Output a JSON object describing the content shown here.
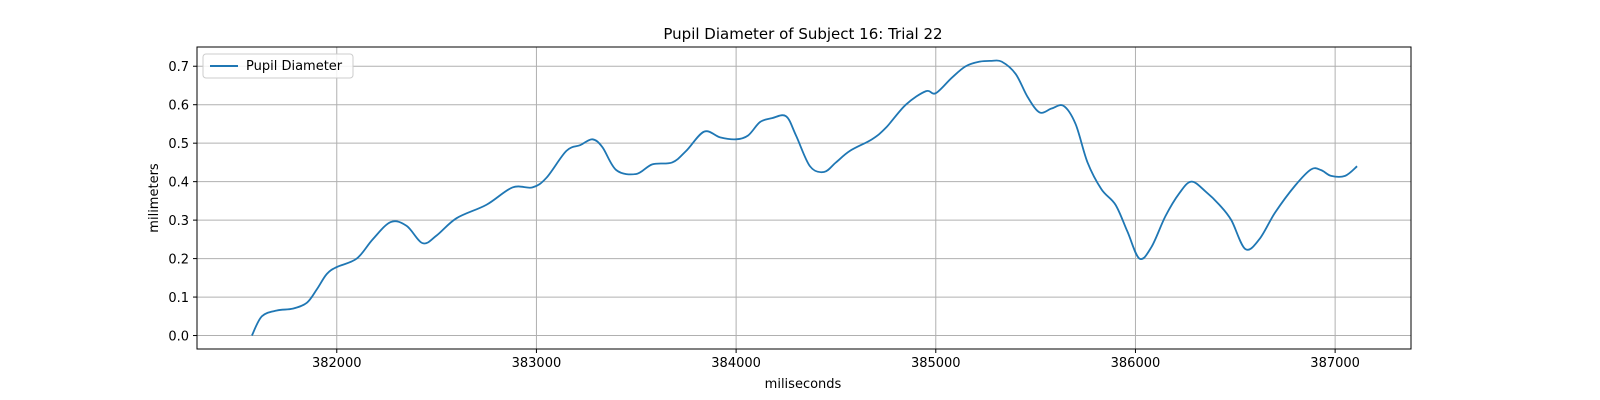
{
  "chart_data": {
    "type": "line",
    "title": "Pupil Diameter of Subject 16: Trial 22",
    "xlabel": "miliseconds",
    "ylabel": "milimeters",
    "xlim": [
      381300,
      387380
    ],
    "ylim": [
      -0.035,
      0.75
    ],
    "xticks": [
      382000,
      383000,
      384000,
      385000,
      386000,
      387000
    ],
    "yticks": [
      0.0,
      0.1,
      0.2,
      0.3,
      0.4,
      0.5,
      0.6,
      0.7
    ],
    "ytick_labels": [
      "0.0",
      "0.1",
      "0.2",
      "0.3",
      "0.4",
      "0.5",
      "0.6",
      "0.7"
    ],
    "grid": true,
    "legend_position": "top-left",
    "series": [
      {
        "name": "Pupil Diameter",
        "color": "#1f77b4",
        "x": [
          381575,
          381625,
          381700,
          381780,
          381850,
          381900,
          381950,
          382000,
          382100,
          382180,
          382270,
          382350,
          382430,
          382500,
          382600,
          382750,
          382880,
          382980,
          383050,
          383150,
          383220,
          383280,
          383330,
          383400,
          383500,
          383580,
          383680,
          383750,
          383840,
          383920,
          384000,
          384060,
          384120,
          384180,
          384250,
          384300,
          384370,
          384440,
          384500,
          384570,
          384680,
          384750,
          384850,
          384950,
          385000,
          385080,
          385150,
          385220,
          385280,
          385330,
          385400,
          385460,
          385520,
          385580,
          385640,
          385700,
          385760,
          385830,
          385900,
          385960,
          386020,
          386080,
          386150,
          386220,
          386280,
          386350,
          386420,
          386480,
          386550,
          386620,
          386700,
          386800,
          386880,
          386930,
          386980,
          387050,
          387110
        ],
        "y": [
          0.0,
          0.05,
          0.065,
          0.07,
          0.085,
          0.12,
          0.16,
          0.178,
          0.2,
          0.25,
          0.295,
          0.285,
          0.24,
          0.26,
          0.305,
          0.34,
          0.385,
          0.385,
          0.41,
          0.48,
          0.495,
          0.51,
          0.49,
          0.43,
          0.42,
          0.445,
          0.45,
          0.48,
          0.53,
          0.515,
          0.51,
          0.52,
          0.555,
          0.565,
          0.57,
          0.52,
          0.44,
          0.425,
          0.45,
          0.48,
          0.51,
          0.54,
          0.6,
          0.635,
          0.63,
          0.67,
          0.7,
          0.712,
          0.714,
          0.712,
          0.68,
          0.62,
          0.58,
          0.59,
          0.597,
          0.55,
          0.45,
          0.38,
          0.34,
          0.27,
          0.2,
          0.23,
          0.31,
          0.37,
          0.4,
          0.375,
          0.34,
          0.3,
          0.225,
          0.25,
          0.32,
          0.39,
          0.432,
          0.43,
          0.415,
          0.415,
          0.44
        ]
      }
    ]
  }
}
